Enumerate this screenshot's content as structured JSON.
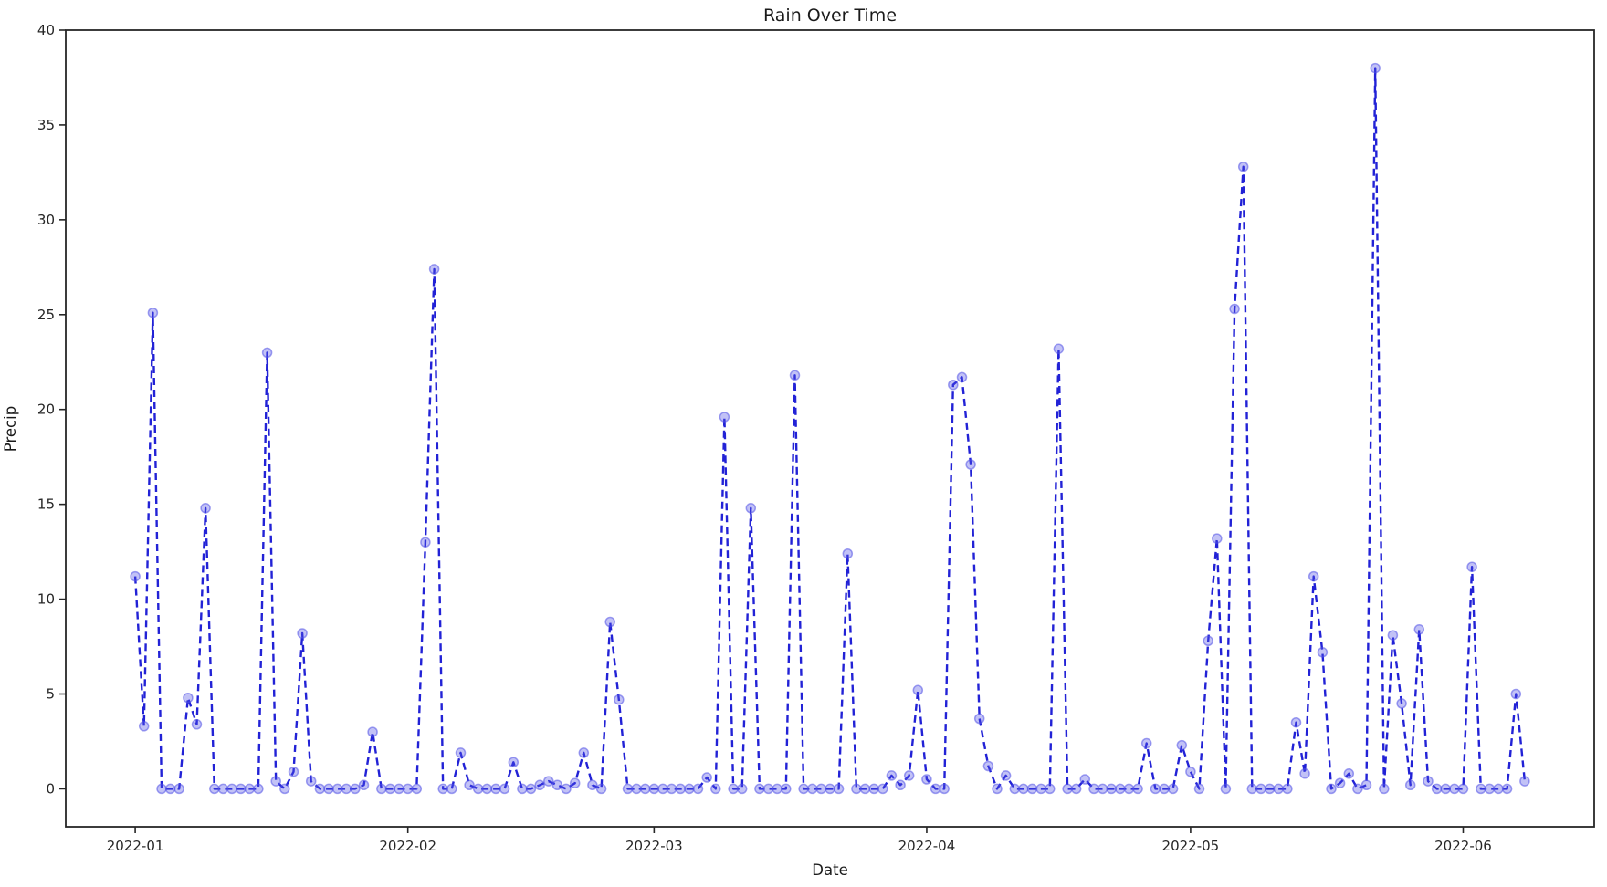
{
  "chart_data": {
    "type": "line",
    "title": "Rain Over Time",
    "xlabel": "Date",
    "ylabel": "Precip",
    "grid": false,
    "legend": "none",
    "line_style": "dashed",
    "line_color": "#2222d6",
    "marker_shape": "circle",
    "marker_fill": "rgba(80,80,230,0.35)",
    "marker_edge": "rgba(80,80,230,0.55)",
    "axis_color": "#262626",
    "background_color": "#ffffff",
    "start_date": "2022-01-01",
    "sampling": "daily",
    "x_tick_labels": [
      "2022-01",
      "2022-02",
      "2022-03",
      "2022-04",
      "2022-05",
      "2022-06"
    ],
    "x_tick_days": [
      0,
      31,
      59,
      90,
      120,
      151
    ],
    "y_ticks": [
      0,
      5,
      10,
      15,
      20,
      25,
      30,
      35,
      40
    ],
    "ylim": [
      -2,
      40
    ],
    "xlim_days": [
      -7.9,
      165.9
    ],
    "values": [
      11.2,
      3.3,
      25.1,
      0,
      0,
      0,
      4.8,
      3.4,
      14.8,
      0,
      0,
      0,
      0,
      0,
      0,
      23.0,
      0.4,
      0,
      0.9,
      8.2,
      0.4,
      0,
      0,
      0,
      0,
      0,
      0.2,
      3.0,
      0,
      0,
      0,
      0,
      0,
      13.0,
      27.4,
      0,
      0,
      1.9,
      0.2,
      0,
      0,
      0,
      0,
      1.4,
      0,
      0,
      0.2,
      0.4,
      0.2,
      0,
      0.3,
      1.9,
      0.2,
      0,
      8.8,
      4.7,
      0,
      0,
      0,
      0,
      0,
      0,
      0,
      0,
      0,
      0.6,
      0,
      19.6,
      0,
      0,
      14.8,
      0,
      0,
      0,
      0,
      21.8,
      0,
      0,
      0,
      0,
      0,
      12.4,
      0,
      0,
      0,
      0,
      0.7,
      0.2,
      0.7,
      5.2,
      0.5,
      0,
      0,
      21.3,
      21.7,
      17.1,
      3.7,
      1.2,
      0,
      0.7,
      0,
      0,
      0,
      0,
      0,
      23.2,
      0,
      0,
      0.5,
      0,
      0,
      0,
      0,
      0,
      0,
      2.4,
      0,
      0,
      0,
      2.3,
      0.9,
      0,
      7.8,
      13.2,
      0,
      25.3,
      32.8,
      0,
      0,
      0,
      0,
      0,
      3.5,
      0.8,
      11.2,
      7.2,
      0,
      0.3,
      0.8,
      0,
      0.2,
      38.0,
      0,
      8.1,
      4.5,
      0.2,
      8.4,
      0.4,
      0,
      0,
      0,
      0,
      11.7,
      0,
      0,
      0,
      0,
      5.0,
      0.4
    ]
  }
}
